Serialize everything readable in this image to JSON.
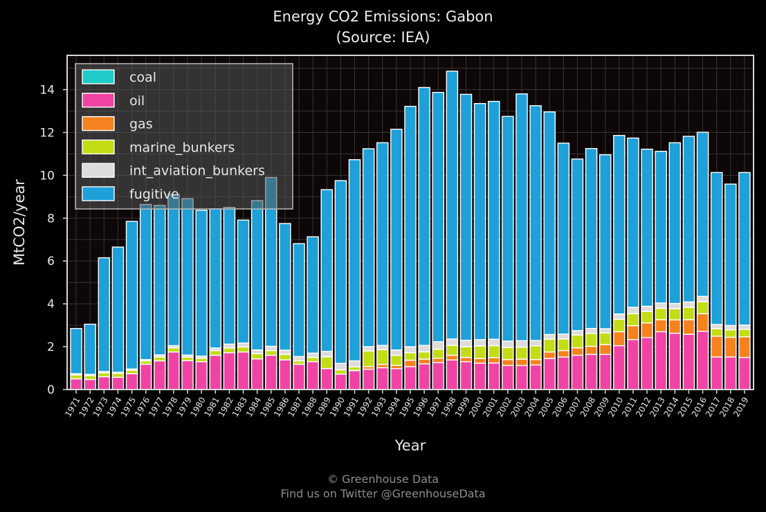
{
  "chart_data": {
    "type": "bar",
    "stacked": true,
    "title": "Energy CO2 Emissions: Gabon",
    "subtitle": "(Source: IEA)",
    "xlabel": "Year",
    "ylabel": "MtCO2/year",
    "ylim": [
      0,
      15.6
    ],
    "yticks": [
      0,
      2,
      4,
      6,
      8,
      10,
      12,
      14
    ],
    "grid": true,
    "legend_position": "top-left",
    "categories": [
      "1971",
      "1972",
      "1973",
      "1974",
      "1975",
      "1976",
      "1977",
      "1978",
      "1979",
      "1980",
      "1981",
      "1982",
      "1983",
      "1984",
      "1985",
      "1986",
      "1987",
      "1988",
      "1989",
      "1990",
      "1991",
      "1992",
      "1993",
      "1994",
      "1995",
      "1996",
      "1997",
      "1998",
      "1999",
      "2000",
      "2001",
      "2002",
      "2003",
      "2004",
      "2005",
      "2006",
      "2007",
      "2008",
      "2009",
      "2010",
      "2011",
      "2012",
      "2013",
      "2014",
      "2015",
      "2016",
      "2017",
      "2018",
      "2019"
    ],
    "series": [
      {
        "name": "coal",
        "color": "#1ecbc8",
        "values": [
          0,
          0,
          0,
          0,
          0,
          0,
          0,
          0,
          0,
          0,
          0,
          0,
          0,
          0,
          0,
          0,
          0,
          0,
          0,
          0,
          0,
          0,
          0,
          0,
          0,
          0,
          0,
          0,
          0,
          0,
          0,
          0,
          0,
          0,
          0,
          0,
          0,
          0,
          0,
          0,
          0,
          0,
          0,
          0,
          0,
          0,
          0,
          0,
          0
        ]
      },
      {
        "name": "oil",
        "color": "#f044a4",
        "values": [
          0.5,
          0.47,
          0.6,
          0.57,
          0.74,
          1.18,
          1.34,
          1.75,
          1.35,
          1.3,
          1.6,
          1.72,
          1.75,
          1.43,
          1.6,
          1.38,
          1.18,
          1.3,
          0.98,
          0.72,
          0.88,
          0.95,
          1.02,
          0.98,
          1.07,
          1.2,
          1.26,
          1.38,
          1.3,
          1.23,
          1.24,
          1.12,
          1.12,
          1.15,
          1.45,
          1.52,
          1.6,
          1.64,
          1.64,
          2.05,
          2.33,
          2.43,
          2.7,
          2.63,
          2.58,
          2.72,
          1.52,
          1.52,
          1.5
        ]
      },
      {
        "name": "gas",
        "color": "#f5821e",
        "values": [
          0,
          0,
          0,
          0,
          0,
          0,
          0,
          0,
          0,
          0,
          0,
          0,
          0,
          0,
          0,
          0,
          0,
          0,
          0,
          0,
          0.02,
          0.12,
          0.15,
          0.15,
          0.3,
          0.22,
          0.2,
          0.22,
          0.2,
          0.22,
          0.25,
          0.28,
          0.3,
          0.25,
          0.3,
          0.3,
          0.35,
          0.38,
          0.46,
          0.65,
          0.65,
          0.68,
          0.56,
          0.62,
          0.68,
          0.82,
          0.97,
          0.92,
          0.96
        ]
      },
      {
        "name": "marine_bunkers",
        "color": "#c3dc16",
        "values": [
          0.18,
          0.18,
          0.18,
          0.18,
          0.16,
          0.16,
          0.18,
          0.2,
          0.16,
          0.16,
          0.22,
          0.22,
          0.24,
          0.24,
          0.22,
          0.26,
          0.16,
          0.2,
          0.55,
          0.2,
          0.16,
          0.73,
          0.69,
          0.47,
          0.35,
          0.34,
          0.42,
          0.46,
          0.5,
          0.58,
          0.56,
          0.56,
          0.56,
          0.64,
          0.6,
          0.54,
          0.6,
          0.6,
          0.54,
          0.58,
          0.56,
          0.53,
          0.53,
          0.52,
          0.58,
          0.56,
          0.35,
          0.35,
          0.35
        ]
      },
      {
        "name": "int_aviation_bunkers",
        "color": "#dcdcdc",
        "values": [
          0.06,
          0.06,
          0.06,
          0.06,
          0.06,
          0.06,
          0.1,
          0.1,
          0.1,
          0.1,
          0.12,
          0.18,
          0.18,
          0.18,
          0.2,
          0.2,
          0.2,
          0.2,
          0.25,
          0.3,
          0.28,
          0.2,
          0.2,
          0.25,
          0.28,
          0.3,
          0.35,
          0.3,
          0.3,
          0.3,
          0.3,
          0.3,
          0.3,
          0.25,
          0.22,
          0.23,
          0.2,
          0.23,
          0.2,
          0.25,
          0.3,
          0.25,
          0.25,
          0.25,
          0.25,
          0.25,
          0.2,
          0.2,
          0.2
        ]
      },
      {
        "name": "fugitive",
        "color": "#1ea0d8",
        "values": [
          2.11,
          2.34,
          5.31,
          5.84,
          6.89,
          7.24,
          6.98,
          7.05,
          7.3,
          6.81,
          6.5,
          6.38,
          5.74,
          6.97,
          7.88,
          5.91,
          5.27,
          5.43,
          7.55,
          8.53,
          9.39,
          9.24,
          9.46,
          10.3,
          11.22,
          12.04,
          11.64,
          12.5,
          11.48,
          11.02,
          11.1,
          10.49,
          11.52,
          10.96,
          10.39,
          8.91,
          8.01,
          8.4,
          8.12,
          8.33,
          7.9,
          7.33,
          7.08,
          7.5,
          7.73,
          7.66,
          7.09,
          6.6,
          7.12
        ]
      }
    ]
  },
  "footer": {
    "credit": "© Greenhouse Data",
    "twitter": "Find us on Twitter @GreenhouseData"
  }
}
